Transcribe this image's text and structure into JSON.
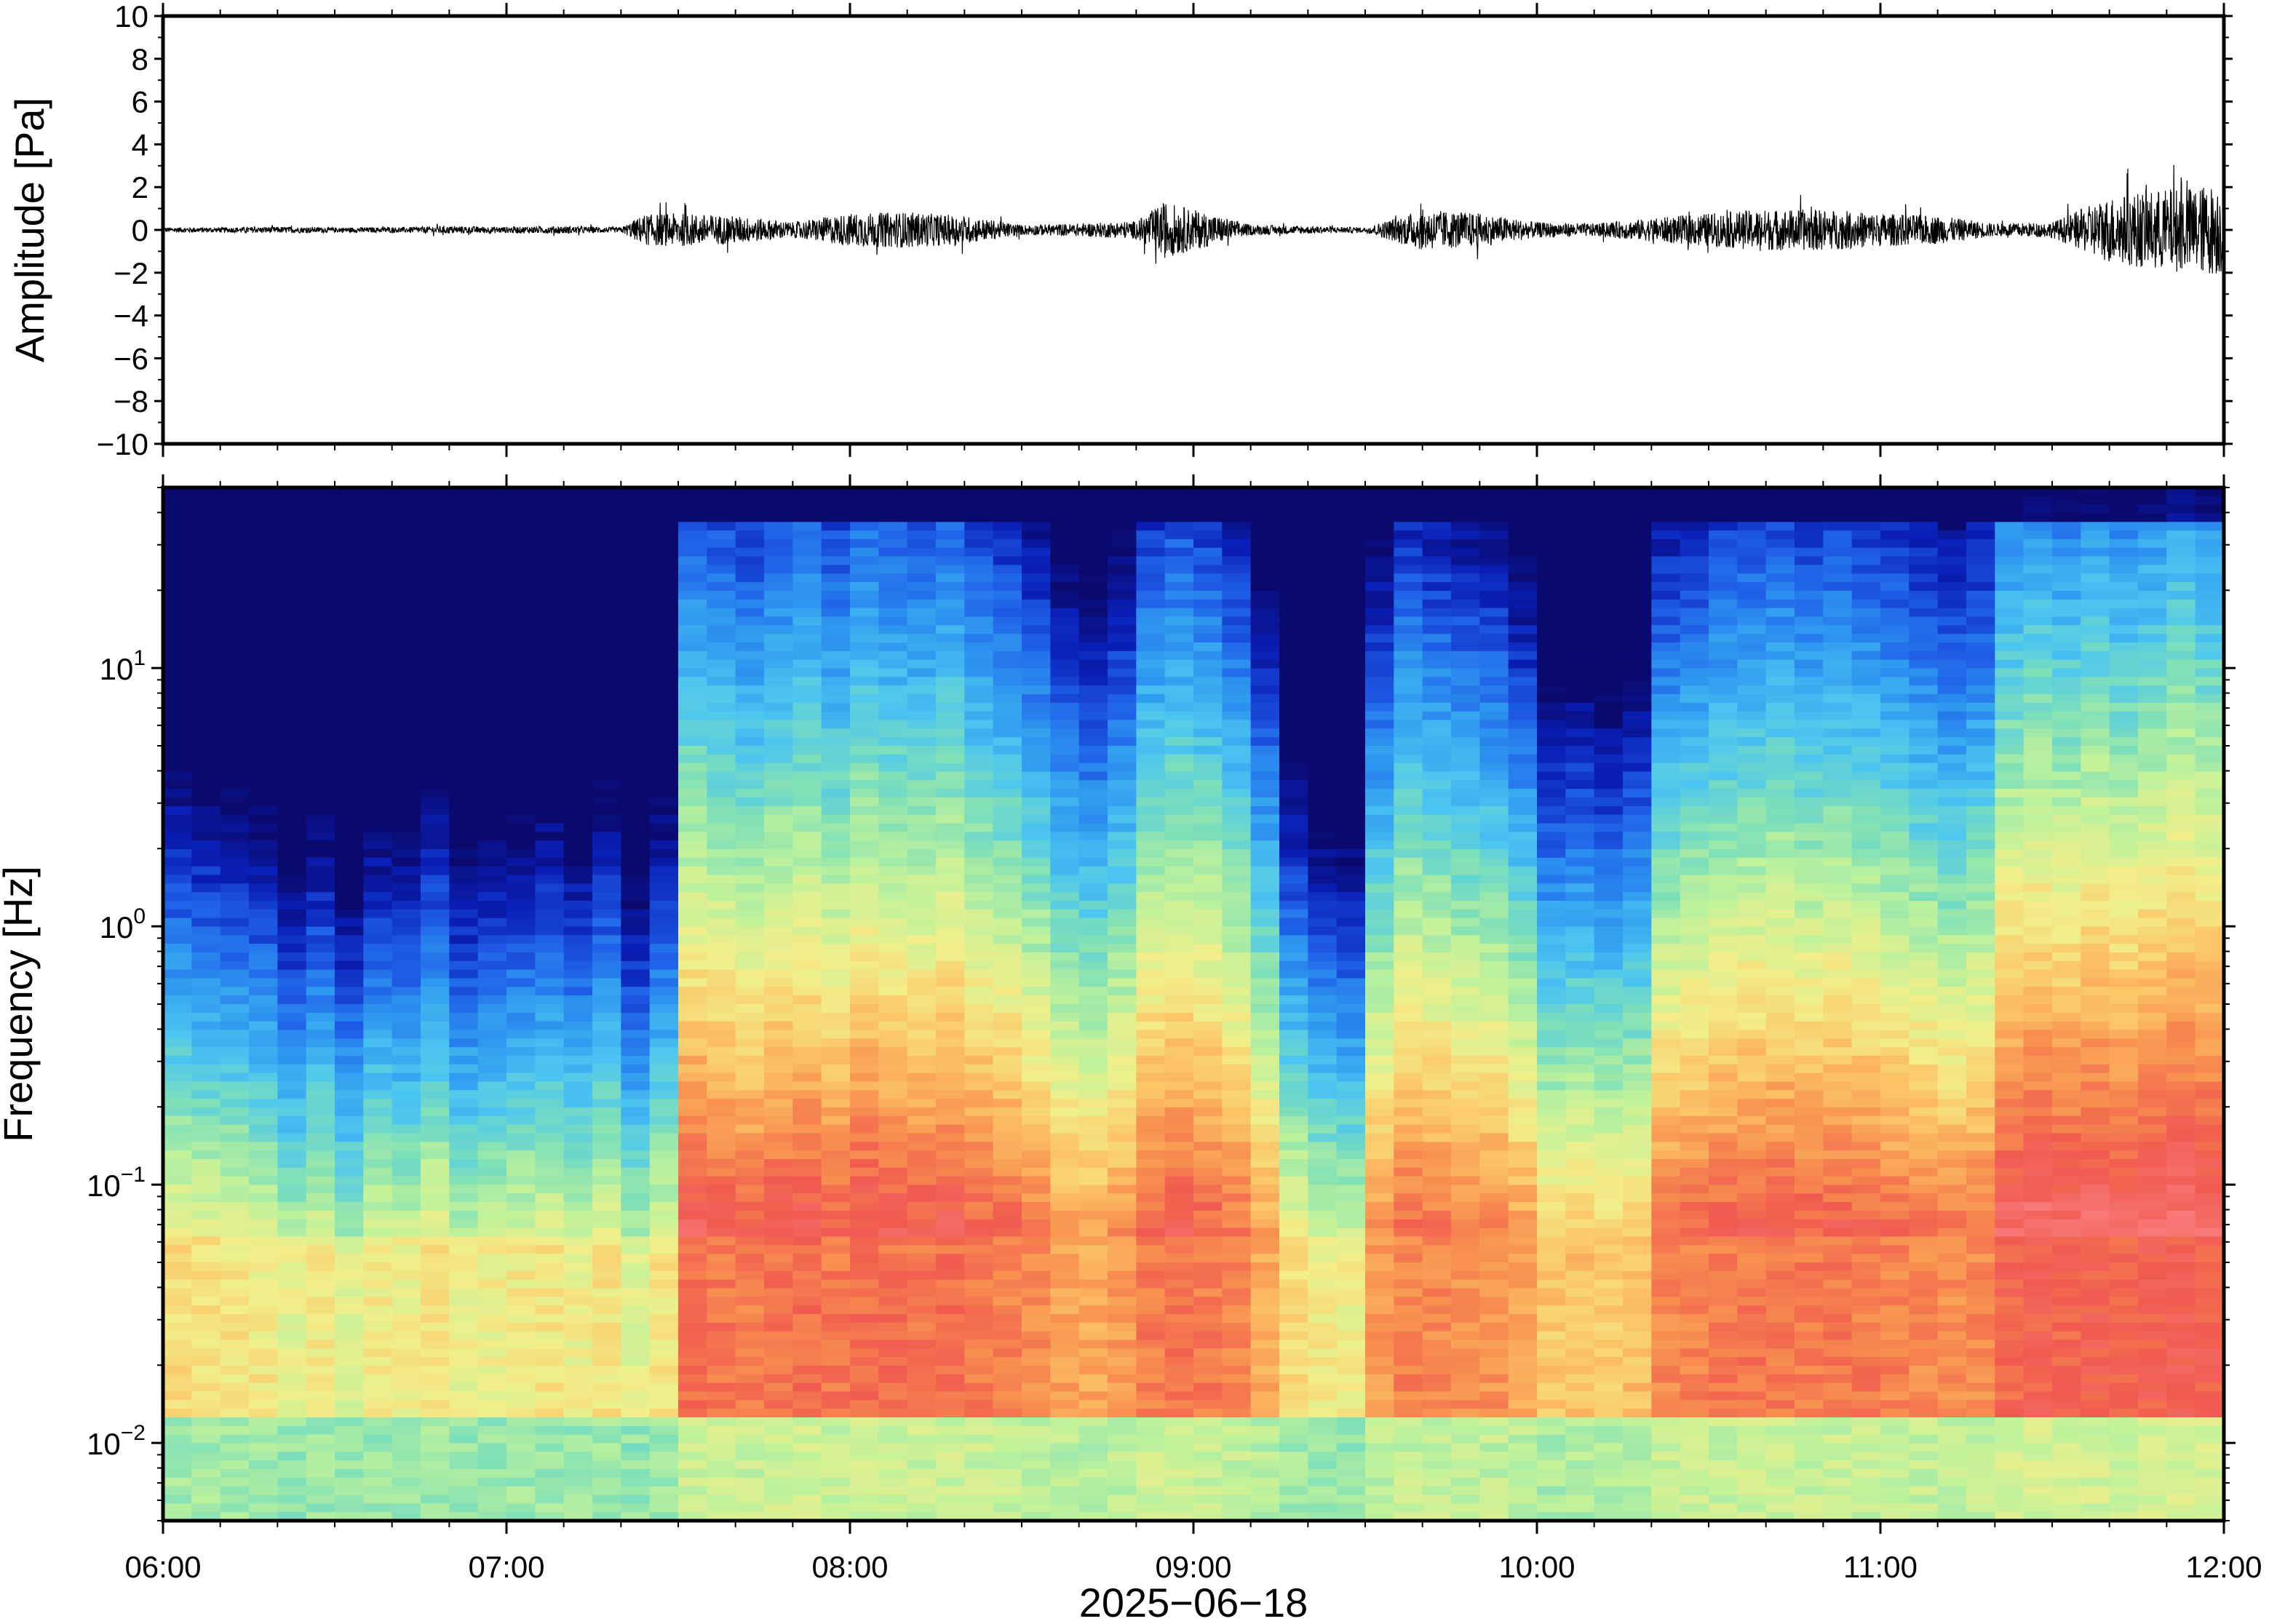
{
  "chart_data": [
    {
      "type": "line",
      "panel": "waveform",
      "ylabel": "Amplitude [Pa]",
      "ylim": [
        -10,
        10
      ],
      "y_ticks": [
        10,
        8,
        6,
        4,
        2,
        0,
        -2,
        -4,
        -6,
        -8,
        -10
      ],
      "y_tick_labels": [
        "10",
        "8",
        "6",
        "4",
        "2",
        "0",
        "−2",
        "−4",
        "−6",
        "−8",
        "−10"
      ],
      "xlim": [
        "06:00",
        "12:00"
      ],
      "line_color": "#000000",
      "series": [
        {
          "envelope_minutes": [
            0,
            10,
            20,
            30,
            40,
            50,
            60,
            70,
            80,
            84,
            90,
            100,
            110,
            120,
            130,
            140,
            150,
            160,
            170,
            175,
            180,
            190,
            200,
            210,
            220,
            230,
            240,
            250,
            260,
            270,
            280,
            290,
            300,
            310,
            320,
            330,
            340,
            350,
            360
          ],
          "envelope_amplitude": [
            0.2,
            0.2,
            0.25,
            0.2,
            0.2,
            0.3,
            0.25,
            0.3,
            0.2,
            1.2,
            1.3,
            1.1,
            0.6,
            1.3,
            1.4,
            1.1,
            0.4,
            0.5,
            0.7,
            2.2,
            1.6,
            0.4,
            0.3,
            0.2,
            1.6,
            1.3,
            0.6,
            0.5,
            0.9,
            1.3,
            1.6,
            1.6,
            1.3,
            1.1,
            0.5,
            0.6,
            2.6,
            3.2,
            3.6
          ]
        }
      ]
    },
    {
      "type": "heatmap",
      "panel": "spectrogram",
      "ylabel": "Frequency [Hz]",
      "y_scale": "log",
      "ylim": [
        0.005,
        50
      ],
      "y_ticks": [
        {
          "base": "10",
          "exp": "1"
        },
        {
          "base": "10",
          "exp": "0"
        },
        {
          "base": "10",
          "exp": "−1"
        },
        {
          "base": "10",
          "exp": "−2"
        }
      ],
      "xlabel": "2025−06−18",
      "x_tick_labels": [
        "06:00",
        "07:00",
        "08:00",
        "09:00",
        "10:00",
        "11:00",
        "12:00"
      ],
      "colormap": [
        "#0a0a6e",
        "#0a1fb8",
        "#1f5fe8",
        "#2f9af0",
        "#4cc6f0",
        "#7fe0b8",
        "#c2f29a",
        "#f2ee8a",
        "#fcc466",
        "#f89050",
        "#f05a4f",
        "#f87878"
      ],
      "columns_minutes": [
        0,
        5,
        10,
        15,
        20,
        25,
        30,
        35,
        40,
        45,
        50,
        55,
        60,
        65,
        70,
        75,
        80,
        85,
        90,
        95,
        100,
        105,
        110,
        115,
        120,
        125,
        130,
        135,
        140,
        145,
        150,
        155,
        160,
        165,
        170,
        175,
        180,
        185,
        190,
        195,
        200,
        205,
        210,
        215,
        220,
        225,
        230,
        235,
        240,
        245,
        250,
        255,
        260,
        265,
        270,
        275,
        280,
        285,
        290,
        295,
        300,
        305,
        310,
        315,
        320,
        325,
        330,
        335,
        340,
        345,
        350,
        355
      ],
      "column_energy": [
        0.3,
        0.28,
        0.27,
        0.25,
        0.18,
        0.24,
        0.16,
        0.24,
        0.22,
        0.28,
        0.2,
        0.22,
        0.24,
        0.26,
        0.22,
        0.27,
        0.17,
        0.26,
        0.66,
        0.64,
        0.62,
        0.65,
        0.66,
        0.63,
        0.67,
        0.65,
        0.64,
        0.66,
        0.62,
        0.6,
        0.56,
        0.5,
        0.48,
        0.52,
        0.62,
        0.64,
        0.62,
        0.58,
        0.48,
        0.3,
        0.24,
        0.22,
        0.52,
        0.6,
        0.58,
        0.56,
        0.55,
        0.5,
        0.38,
        0.4,
        0.38,
        0.4,
        0.58,
        0.6,
        0.62,
        0.63,
        0.64,
        0.62,
        0.63,
        0.62,
        0.6,
        0.58,
        0.56,
        0.58,
        0.7,
        0.72,
        0.7,
        0.72,
        0.7,
        0.72,
        0.74,
        0.72
      ]
    }
  ]
}
